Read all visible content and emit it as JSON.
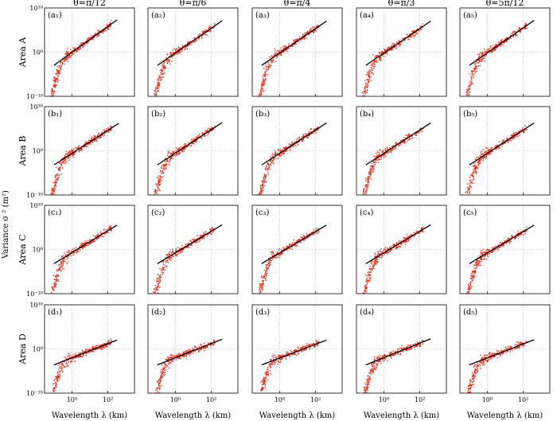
{
  "figure": {
    "ylabel_text": "Variance  σ ² (m²)",
    "xlabel_text": "Wavelength  λ  (km)"
  },
  "chart_data": {
    "type": "scatter",
    "grid": true,
    "x_scale": "log",
    "y_scale": "log",
    "xlim": [
      0.03,
      3000
    ],
    "ylim": [
      1e-10,
      10000000000.0
    ],
    "xticks": [
      1,
      100
    ],
    "xtick_labels": [
      "10⁰",
      "10²"
    ],
    "yticks": [
      1e-10,
      1,
      10000000000.0
    ],
    "ytick_labels": [
      "10⁻¹⁰",
      "10⁰",
      "10¹⁰"
    ],
    "columns": [
      "θ=π/12",
      "θ=π/6",
      "θ=π/4",
      "θ=π/3",
      "θ=5π/12"
    ],
    "rows": [
      "Area A",
      "Area B",
      "Area C",
      "Area D"
    ],
    "panels": [
      {
        "label": "(a₁)",
        "fit_endpoints_log10": [
          [
            -1.0,
            -3.0
          ],
          [
            2.5,
            7.3
          ]
        ]
      },
      {
        "label": "(a₂)",
        "fit_endpoints_log10": [
          [
            -1.0,
            -3.0
          ],
          [
            2.6,
            7.1
          ]
        ]
      },
      {
        "label": "(a₃)",
        "fit_endpoints_log10": [
          [
            -1.0,
            -3.0
          ],
          [
            2.6,
            7.0
          ]
        ]
      },
      {
        "label": "(a₄)",
        "fit_endpoints_log10": [
          [
            -1.0,
            -3.0
          ],
          [
            2.6,
            7.0
          ]
        ]
      },
      {
        "label": "(a₅)",
        "fit_endpoints_log10": [
          [
            -1.0,
            -3.0
          ],
          [
            2.6,
            7.2
          ]
        ]
      },
      {
        "label": "(b₁)",
        "fit_endpoints_log10": [
          [
            -1.0,
            -3.2
          ],
          [
            2.6,
            6.2
          ]
        ]
      },
      {
        "label": "(b₂)",
        "fit_endpoints_log10": [
          [
            -1.0,
            -3.2
          ],
          [
            2.6,
            6.4
          ]
        ]
      },
      {
        "label": "(b₃)",
        "fit_endpoints_log10": [
          [
            -1.0,
            -3.2
          ],
          [
            2.6,
            6.3
          ]
        ]
      },
      {
        "label": "(b₄)",
        "fit_endpoints_log10": [
          [
            -1.0,
            -3.2
          ],
          [
            2.6,
            6.3
          ]
        ]
      },
      {
        "label": "(b₅)",
        "fit_endpoints_log10": [
          [
            -1.0,
            -3.2
          ],
          [
            2.6,
            6.3
          ]
        ]
      },
      {
        "label": "(c₁)",
        "fit_endpoints_log10": [
          [
            -1.0,
            -3.2
          ],
          [
            2.5,
            5.5
          ]
        ]
      },
      {
        "label": "(c₂)",
        "fit_endpoints_log10": [
          [
            -1.0,
            -3.2
          ],
          [
            2.6,
            5.6
          ]
        ]
      },
      {
        "label": "(c₃)",
        "fit_endpoints_log10": [
          [
            -1.0,
            -3.2
          ],
          [
            2.6,
            5.5
          ]
        ]
      },
      {
        "label": "(c₄)",
        "fit_endpoints_log10": [
          [
            -1.0,
            -3.2
          ],
          [
            2.6,
            5.6
          ]
        ]
      },
      {
        "label": "(c₅)",
        "fit_endpoints_log10": [
          [
            -1.0,
            -3.2
          ],
          [
            2.6,
            5.5
          ]
        ]
      },
      {
        "label": "(d₁)",
        "fit_endpoints_log10": [
          [
            -1.0,
            -3.6
          ],
          [
            2.5,
            2.0
          ]
        ]
      },
      {
        "label": "(d₂)",
        "fit_endpoints_log10": [
          [
            -1.0,
            -3.6
          ],
          [
            2.6,
            2.2
          ]
        ]
      },
      {
        "label": "(d₃)",
        "fit_endpoints_log10": [
          [
            -1.0,
            -3.6
          ],
          [
            2.6,
            2.0
          ]
        ]
      },
      {
        "label": "(d₄)",
        "fit_endpoints_log10": [
          [
            -1.0,
            -3.6
          ],
          [
            2.6,
            2.3
          ]
        ]
      },
      {
        "label": "(d₅)",
        "fit_endpoints_log10": [
          [
            -1.0,
            -3.6
          ],
          [
            2.6,
            2.1
          ]
        ]
      }
    ],
    "series": [
      {
        "color": "#e8311a",
        "marker": "point"
      },
      {
        "color": "#000000",
        "marker": "line"
      }
    ]
  }
}
